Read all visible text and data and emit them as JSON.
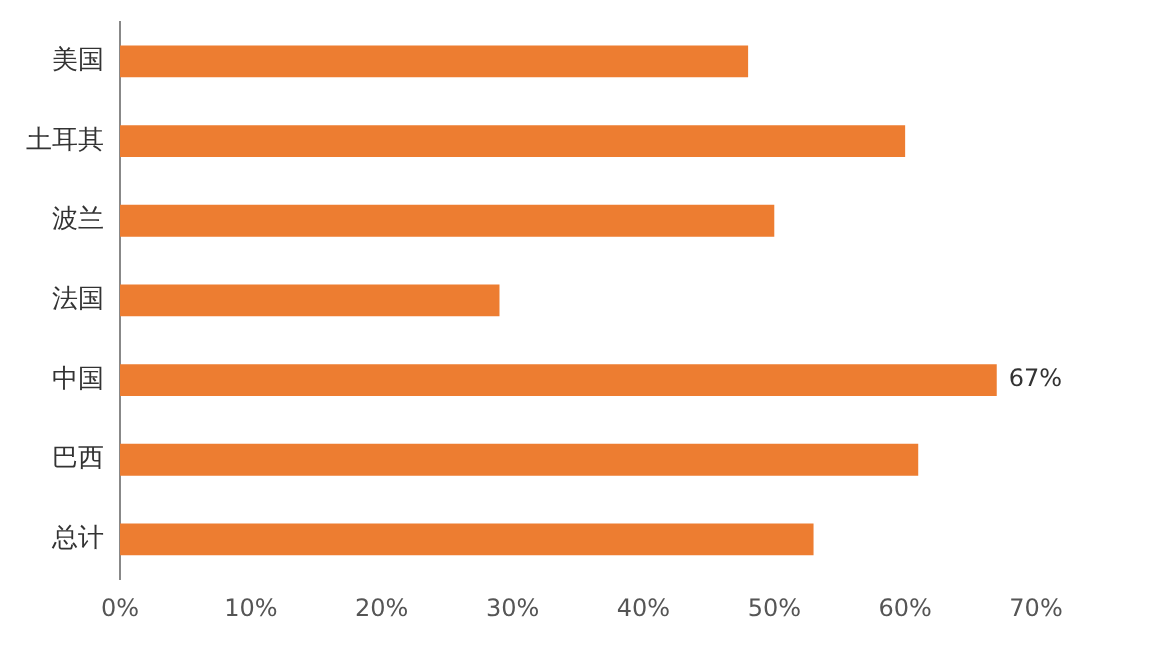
{
  "chart_data": {
    "type": "bar",
    "orientation": "horizontal",
    "categories": [
      "美国",
      "土耳其",
      "波兰",
      "法国",
      "中国",
      "巴西",
      "总计"
    ],
    "values": [
      48,
      60,
      50,
      29,
      67,
      61,
      53
    ],
    "value_labels": [
      null,
      null,
      null,
      null,
      "67%",
      null,
      null
    ],
    "color": "#ed7d31",
    "xlim": [
      0,
      70
    ],
    "xticks": [
      {
        "value": 0,
        "label": "0%"
      },
      {
        "value": 10,
        "label": "10%"
      },
      {
        "value": 20,
        "label": "20%"
      },
      {
        "value": 30,
        "label": "30%"
      },
      {
        "value": 40,
        "label": "40%"
      },
      {
        "value": 50,
        "label": "50%"
      },
      {
        "value": 60,
        "label": "60%"
      },
      {
        "value": 70,
        "label": "70%"
      }
    ],
    "grid": false,
    "legend": false
  }
}
